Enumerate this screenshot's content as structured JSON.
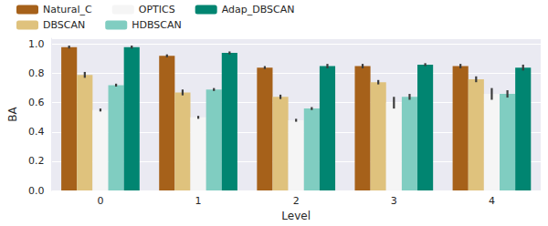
{
  "chart_data": {
    "type": "bar",
    "x_label": "Level",
    "y_label": "BA",
    "categories": [
      "0",
      "1",
      "2",
      "3",
      "4"
    ],
    "series": [
      {
        "name": "Natural_C",
        "color": "#a6611a",
        "values": [
          0.98,
          0.92,
          0.84,
          0.85,
          0.85
        ],
        "errors": [
          0.01,
          0.01,
          0.01,
          0.015,
          0.015
        ]
      },
      {
        "name": "DBSCAN",
        "color": "#dfc27d",
        "values": [
          0.79,
          0.67,
          0.64,
          0.74,
          0.76
        ],
        "errors": [
          0.02,
          0.02,
          0.015,
          0.015,
          0.02
        ]
      },
      {
        "name": "OPTICS",
        "color": "#f5f5f5",
        "values": [
          0.55,
          0.5,
          0.48,
          0.6,
          0.66
        ],
        "errors": [
          0.01,
          0.01,
          0.01,
          0.04,
          0.04
        ]
      },
      {
        "name": "HDBSCAN",
        "color": "#80cdc1",
        "values": [
          0.72,
          0.69,
          0.56,
          0.64,
          0.66
        ],
        "errors": [
          0.01,
          0.01,
          0.01,
          0.02,
          0.025
        ]
      },
      {
        "name": "Adap_DBSCAN",
        "color": "#018571",
        "values": [
          0.98,
          0.94,
          0.85,
          0.86,
          0.84
        ],
        "errors": [
          0.01,
          0.01,
          0.015,
          0.01,
          0.02
        ]
      }
    ],
    "ylim": [
      0,
      1.04
    ],
    "yticks": [
      {
        "value": 0,
        "label": "0.0"
      },
      {
        "value": 0.2,
        "label": "0.2"
      },
      {
        "value": 0.4,
        "label": "0.4"
      },
      {
        "value": 0.6,
        "label": "0.6"
      },
      {
        "value": 0.8,
        "label": "0.8"
      },
      {
        "value": 1.0,
        "label": "1.0"
      }
    ],
    "grid": true,
    "legend": "top-left"
  }
}
